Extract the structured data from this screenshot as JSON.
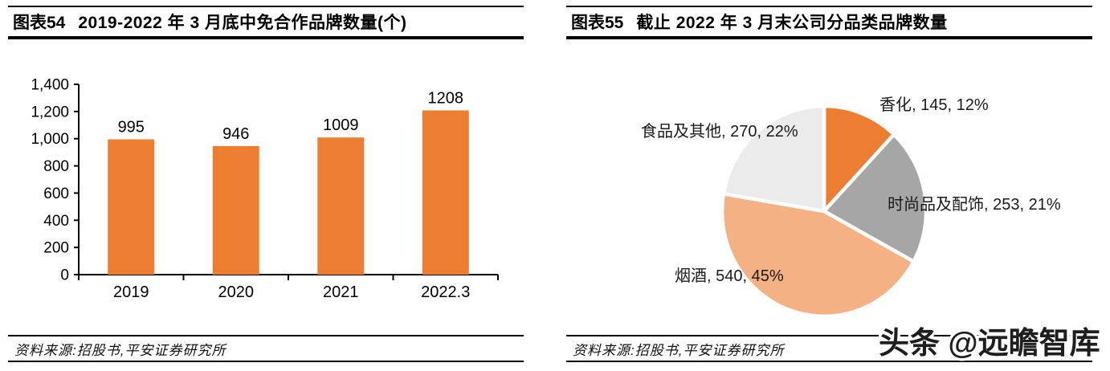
{
  "panels": {
    "left": {
      "header": {
        "tag": "图表54",
        "title": "2019-2022 年 3 月底中免合作品牌数量(个)"
      },
      "source": "资料来源:招股书,平安证券研究所"
    },
    "right": {
      "header": {
        "tag": "图表55",
        "title": "截止 2022 年 3 月末公司分品类品牌数量"
      },
      "source": "资料来源:招股书,平安证券研究所"
    }
  },
  "watermark": {
    "text": "头条 @远瞻智库",
    "fill": "#1e1e1e",
    "halo": "#ffffff"
  },
  "chart_data": [
    {
      "type": "bar",
      "title": "2019-2022 年 3 月底中免合作品牌数量(个)",
      "categories": [
        "2019",
        "2020",
        "2021",
        "2022.3"
      ],
      "values": [
        995,
        946,
        1009,
        1208
      ],
      "value_labels": [
        "995",
        "946",
        "1009",
        "1208"
      ],
      "xlabel": "",
      "ylabel": "",
      "ylim": [
        0,
        1400
      ],
      "ytick_step": 200,
      "ytick_labels": [
        "0",
        "200",
        "400",
        "600",
        "800",
        "1,000",
        "1,200",
        "1,400"
      ],
      "grid": false,
      "legend": "none",
      "bar_color": "#ED7D31",
      "axis_color": "#000000",
      "text_color": "#000000"
    },
    {
      "type": "pie",
      "title": "截止 2022 年 3 月末公司分品类品牌数量",
      "start_angle_deg": 0,
      "direction": "clockwise",
      "label_format": "{label}, {value}, {pct}",
      "slices": [
        {
          "label": "香化",
          "value": 145,
          "pct": "12%",
          "color": "#ED7D31"
        },
        {
          "label": "时尚品及配饰",
          "value": 253,
          "pct": "21%",
          "color": "#A6A6A6"
        },
        {
          "label": "烟酒",
          "value": 540,
          "pct": "45%",
          "color": "#F4B183"
        },
        {
          "label": "食品及其他",
          "value": 270,
          "pct": "22%",
          "color": "#EBEBEB"
        }
      ],
      "slice_border_color": "#ffffff",
      "label_text_color": "#1a1a1a"
    }
  ]
}
